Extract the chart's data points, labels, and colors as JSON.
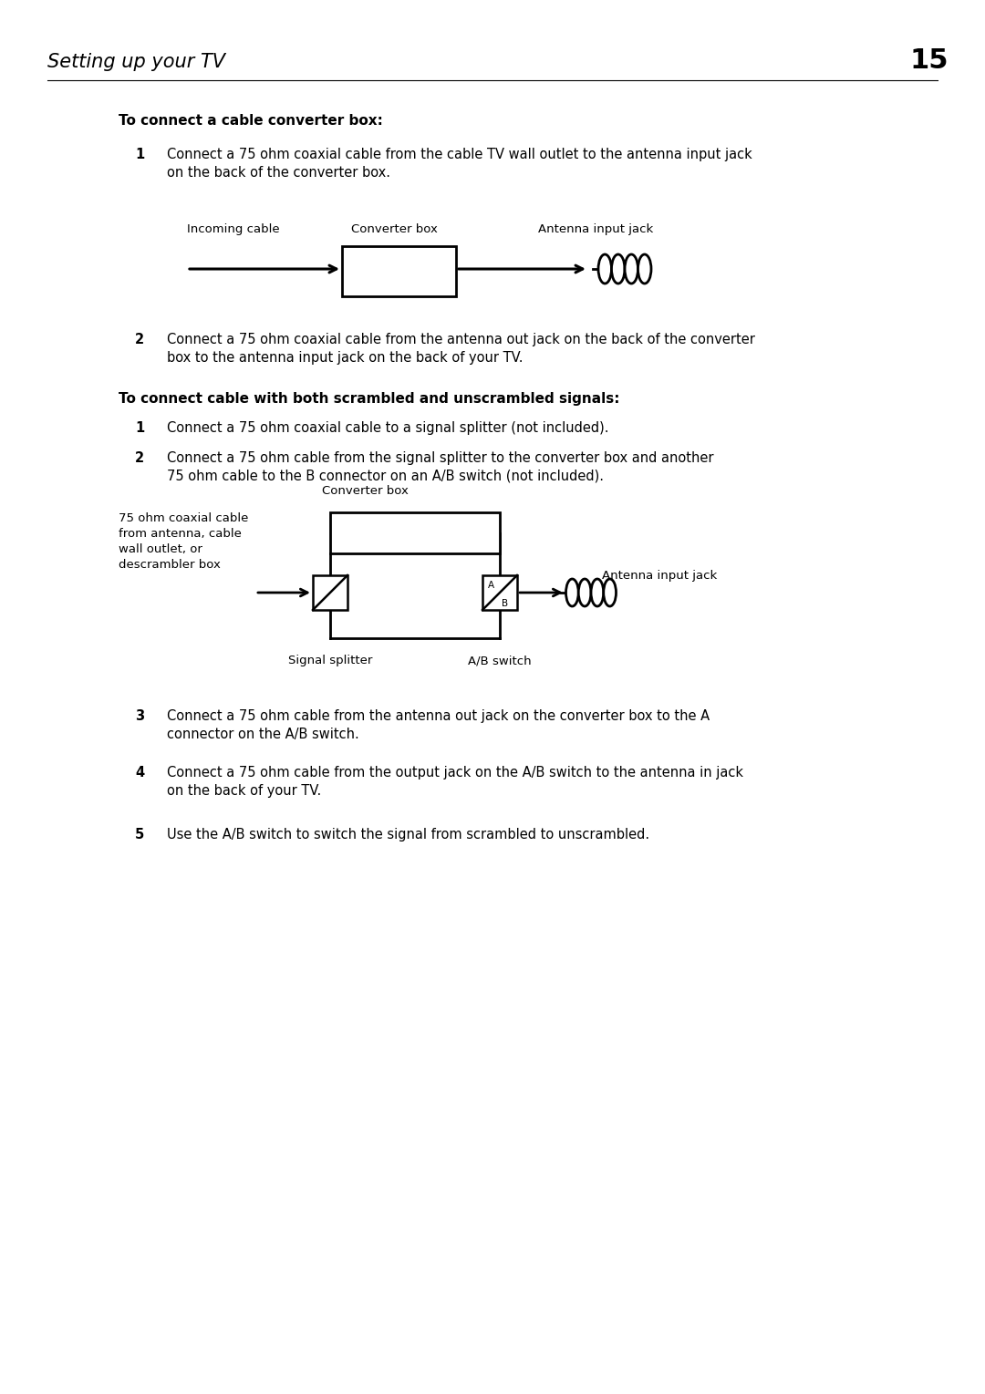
{
  "page_title": "Setting up your TV",
  "page_number": "15",
  "bg_color": "#ffffff",
  "text_color": "#000000",
  "section1_heading": "To connect a cable converter box:",
  "section1_items": [
    "Connect a 75 ohm coaxial cable from the cable TV wall outlet to the antenna input jack\non the back of the converter box.",
    "Connect a 75 ohm coaxial cable from the antenna out jack on the back of the converter\nbox to the antenna input jack on the back of your TV."
  ],
  "section2_heading": "To connect cable with both scrambled and unscrambled signals:",
  "section2_items": [
    "Connect a 75 ohm coaxial cable to a signal splitter (not included).",
    "Connect a 75 ohm cable from the signal splitter to the converter box and another\n75 ohm cable to the B connector on an A/B switch (not included).",
    "Connect a 75 ohm cable from the antenna out jack on the converter box to the A\nconnector on the A/B switch.",
    "Connect a 75 ohm cable from the output jack on the A/B switch to the antenna in jack\non the back of your TV.",
    "Use the A/B switch to switch the signal from scrambled to unscrambled."
  ],
  "diag1": {
    "label_incoming": "Incoming cable",
    "label_converter": "Converter box",
    "label_antenna": "Antenna input jack"
  },
  "diag2": {
    "label_left": "75 ohm coaxial cable\nfrom antenna, cable\nwall outlet, or\ndescrambler box",
    "label_converter": "Converter box",
    "label_antenna": "Antenna input jack",
    "label_splitter": "Signal splitter",
    "label_abswitch": "A/B switch"
  }
}
